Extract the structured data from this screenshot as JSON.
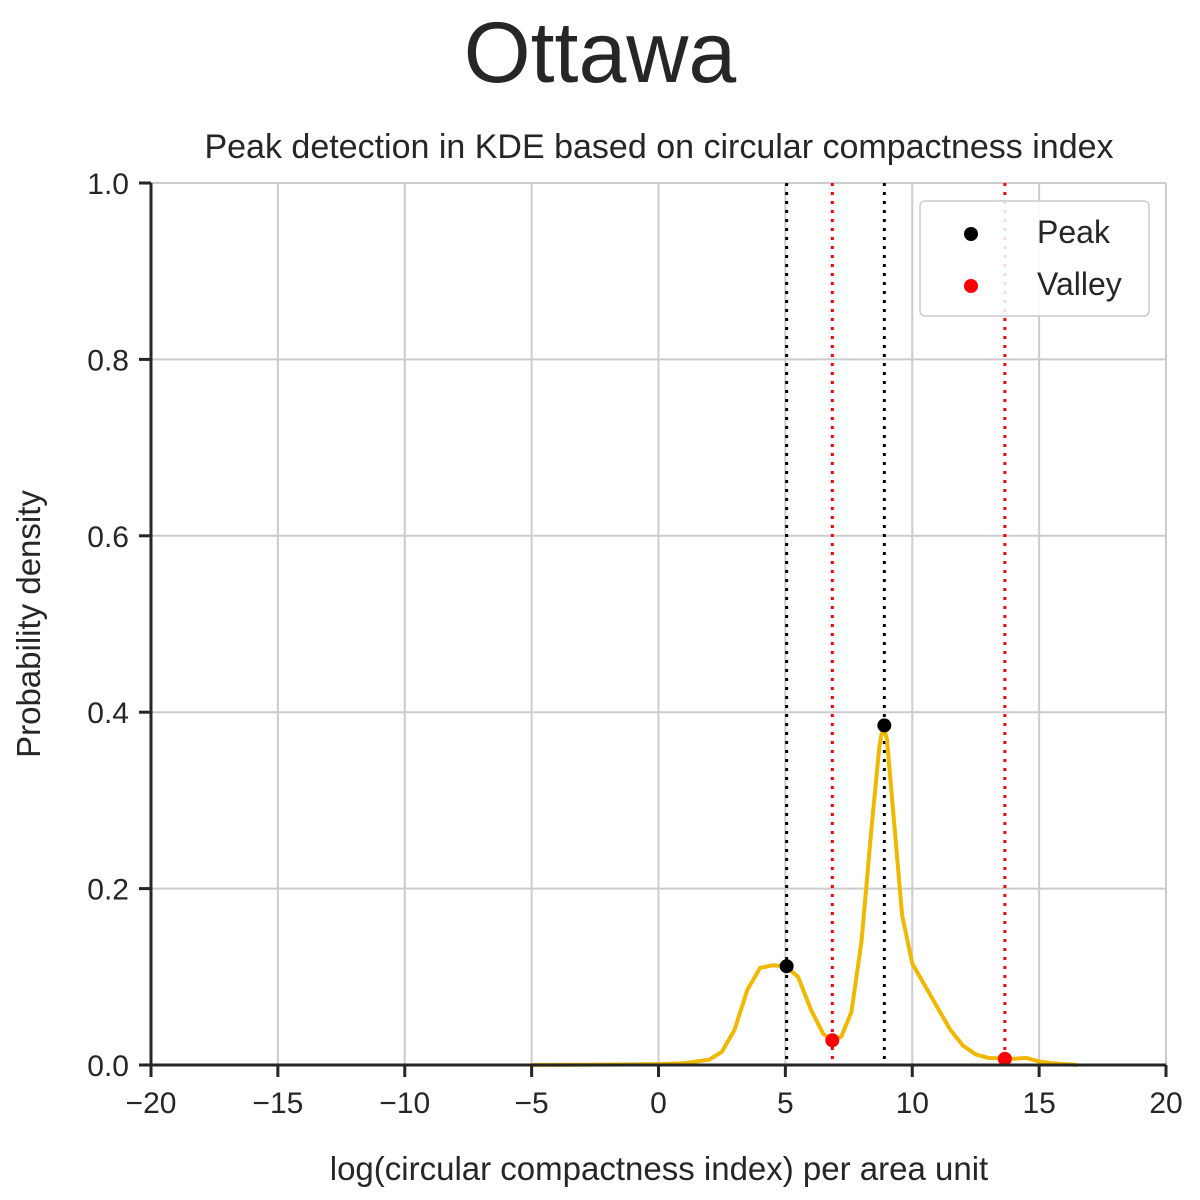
{
  "figure": {
    "suptitle": "Ottawa"
  },
  "chart_data": {
    "type": "line",
    "title": "Peak detection in KDE based on circular compactness index",
    "xlabel": "log(circular compactness index) per area unit",
    "ylabel": "Probability density",
    "xlim": [
      -20,
      20
    ],
    "ylim": [
      0,
      1.0
    ],
    "x_ticks": [
      -20,
      -15,
      -10,
      -5,
      0,
      5,
      10,
      15,
      20
    ],
    "x_tick_labels": [
      "−20",
      "−15",
      "−10",
      "−5",
      "0",
      "5",
      "10",
      "15",
      "20"
    ],
    "y_ticks": [
      0,
      0.2,
      0.4,
      0.6,
      0.8,
      1.0
    ],
    "y_tick_labels": [
      "0.0",
      "0.2",
      "0.4",
      "0.6",
      "0.8",
      "1.0"
    ],
    "grid": true,
    "legend_position": "top-right",
    "colors": {
      "kde": "#f0b800",
      "peak": "#000000",
      "valley": "#ff0000",
      "grid": "#cccccc",
      "axis": "#262626"
    },
    "series": [
      {
        "type": "line",
        "x": [
          -5,
          -2,
          0,
          1,
          2,
          2.5,
          3,
          3.5,
          4,
          4.5,
          5,
          5.5,
          6,
          6.5,
          6.85,
          7.2,
          7.6,
          8,
          8.4,
          8.7,
          8.85,
          9,
          9.3,
          9.6,
          10,
          10.5,
          11,
          11.5,
          12,
          12.5,
          13,
          13.65,
          14,
          14.5,
          15,
          15.5,
          16,
          16.5
        ],
        "y": [
          0.0,
          0.0005,
          0.001,
          0.002,
          0.006,
          0.015,
          0.04,
          0.085,
          0.11,
          0.113,
          0.112,
          0.1,
          0.063,
          0.035,
          0.028,
          0.032,
          0.06,
          0.14,
          0.27,
          0.36,
          0.385,
          0.37,
          0.27,
          0.17,
          0.115,
          0.09,
          0.065,
          0.04,
          0.022,
          0.012,
          0.008,
          0.007,
          0.007,
          0.008,
          0.004,
          0.002,
          0.001,
          0.0
        ]
      },
      {
        "name": "Peak",
        "type": "scatter",
        "x": [
          5.05,
          8.9
        ],
        "y": [
          0.112,
          0.385
        ]
      },
      {
        "name": "Valley",
        "type": "scatter",
        "x": [
          6.85,
          13.65
        ],
        "y": [
          0.028,
          0.007
        ]
      }
    ],
    "vlines": [
      {
        "kind": "peak",
        "x": 5.05
      },
      {
        "kind": "peak",
        "x": 8.9
      },
      {
        "kind": "valley",
        "x": 6.85
      },
      {
        "kind": "valley",
        "x": 13.65
      }
    ]
  }
}
